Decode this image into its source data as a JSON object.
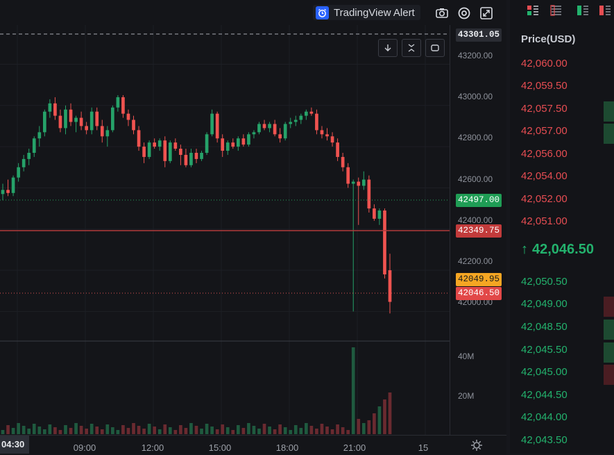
{
  "toolbar": {
    "alert_label": "TradingView Alert",
    "icons": [
      "alarm-clock-icon",
      "camera-icon",
      "settings-icon",
      "fullscreen-icon",
      "arrow-down-icon",
      "collapse-icon",
      "restore-icon"
    ]
  },
  "price_axis": {
    "ticks": [
      "43200.00",
      "43000.00",
      "42800.00",
      "42600.00",
      "42400.00",
      "42200.00",
      "42000.00"
    ],
    "crosshair_label": "43301.05",
    "tags": {
      "green_level": "42497.00",
      "red_level": "42349.75",
      "yellow_level": "42049.95",
      "last_price": "42046.50"
    }
  },
  "volume_axis": {
    "ticks": [
      "40M",
      "20M"
    ]
  },
  "time_axis": {
    "labels": [
      "09:00",
      "12:00",
      "15:00",
      "18:00",
      "21:00",
      "15"
    ],
    "cursor_label": "04:30"
  },
  "order_book": {
    "header": "Price(USD)",
    "asks": [
      "42,060.00",
      "42,059.50",
      "42,057.50",
      "42,057.00",
      "42,056.00",
      "42,054.00",
      "42,052.00",
      "42,051.00"
    ],
    "last_price": "42,046.50",
    "last_arrow": "↑",
    "bids": [
      "42,050.50",
      "42,049.00",
      "42,048.50",
      "42,045.50",
      "42,045.00",
      "42,044.50",
      "42,044.00",
      "42,043.50"
    ]
  },
  "colors": {
    "up": "#26a269",
    "down": "#ef5350",
    "ask_text": "#e64d52",
    "bid_text": "#23b26d",
    "alert_blue": "#2962ff",
    "yellow_tag": "#f5a623"
  },
  "chart_data": {
    "type": "candlestick",
    "interval_hint": "15m",
    "ylim": [
      41900,
      43350
    ],
    "candles": [
      {
        "o": 42570,
        "h": 42620,
        "l": 42540,
        "c": 42590
      },
      {
        "o": 42590,
        "h": 42640,
        "l": 42560,
        "c": 42575
      },
      {
        "o": 42575,
        "h": 42660,
        "l": 42560,
        "c": 42650
      },
      {
        "o": 42650,
        "h": 42720,
        "l": 42630,
        "c": 42700
      },
      {
        "o": 42700,
        "h": 42760,
        "l": 42680,
        "c": 42740
      },
      {
        "o": 42740,
        "h": 42790,
        "l": 42710,
        "c": 42770
      },
      {
        "o": 42770,
        "h": 42850,
        "l": 42750,
        "c": 42840
      },
      {
        "o": 42840,
        "h": 42900,
        "l": 42800,
        "c": 42870
      },
      {
        "o": 42870,
        "h": 42980,
        "l": 42850,
        "c": 42970
      },
      {
        "o": 42970,
        "h": 43030,
        "l": 42940,
        "c": 43010
      },
      {
        "o": 43010,
        "h": 43040,
        "l": 42930,
        "c": 42950
      },
      {
        "o": 42950,
        "h": 42980,
        "l": 42870,
        "c": 42890
      },
      {
        "o": 42890,
        "h": 43000,
        "l": 42860,
        "c": 42980
      },
      {
        "o": 42980,
        "h": 43010,
        "l": 42900,
        "c": 42920
      },
      {
        "o": 42920,
        "h": 42950,
        "l": 42870,
        "c": 42940
      },
      {
        "o": 42940,
        "h": 42970,
        "l": 42880,
        "c": 42900
      },
      {
        "o": 42900,
        "h": 42920,
        "l": 42860,
        "c": 42880
      },
      {
        "o": 42880,
        "h": 42990,
        "l": 42860,
        "c": 42970
      },
      {
        "o": 42970,
        "h": 42990,
        "l": 42880,
        "c": 42900
      },
      {
        "o": 42900,
        "h": 42930,
        "l": 42820,
        "c": 42850
      },
      {
        "o": 42850,
        "h": 42900,
        "l": 42800,
        "c": 42880
      },
      {
        "o": 42880,
        "h": 43000,
        "l": 42870,
        "c": 42990
      },
      {
        "o": 42990,
        "h": 43050,
        "l": 42970,
        "c": 43040
      },
      {
        "o": 43040,
        "h": 43050,
        "l": 42940,
        "c": 42960
      },
      {
        "o": 42960,
        "h": 42980,
        "l": 42900,
        "c": 42930
      },
      {
        "o": 42930,
        "h": 42950,
        "l": 42860,
        "c": 42880
      },
      {
        "o": 42880,
        "h": 42900,
        "l": 42780,
        "c": 42800
      },
      {
        "o": 42800,
        "h": 42820,
        "l": 42720,
        "c": 42750
      },
      {
        "o": 42750,
        "h": 42830,
        "l": 42740,
        "c": 42820
      },
      {
        "o": 42820,
        "h": 42840,
        "l": 42790,
        "c": 42800
      },
      {
        "o": 42800,
        "h": 42840,
        "l": 42780,
        "c": 42830
      },
      {
        "o": 42830,
        "h": 42850,
        "l": 42700,
        "c": 42730
      },
      {
        "o": 42730,
        "h": 42830,
        "l": 42720,
        "c": 42820
      },
      {
        "o": 42820,
        "h": 42840,
        "l": 42780,
        "c": 42790
      },
      {
        "o": 42790,
        "h": 42810,
        "l": 42710,
        "c": 42760
      },
      {
        "o": 42760,
        "h": 42790,
        "l": 42700,
        "c": 42710
      },
      {
        "o": 42710,
        "h": 42790,
        "l": 42700,
        "c": 42770
      },
      {
        "o": 42770,
        "h": 42790,
        "l": 42720,
        "c": 42740
      },
      {
        "o": 42740,
        "h": 42780,
        "l": 42730,
        "c": 42770
      },
      {
        "o": 42770,
        "h": 42870,
        "l": 42760,
        "c": 42860
      },
      {
        "o": 42860,
        "h": 42980,
        "l": 42850,
        "c": 42960
      },
      {
        "o": 42960,
        "h": 42970,
        "l": 42820,
        "c": 42840
      },
      {
        "o": 42840,
        "h": 42860,
        "l": 42750,
        "c": 42780
      },
      {
        "o": 42780,
        "h": 42830,
        "l": 42760,
        "c": 42820
      },
      {
        "o": 42820,
        "h": 42840,
        "l": 42790,
        "c": 42800
      },
      {
        "o": 42800,
        "h": 42850,
        "l": 42780,
        "c": 42840
      },
      {
        "o": 42840,
        "h": 42860,
        "l": 42800,
        "c": 42810
      },
      {
        "o": 42810,
        "h": 42870,
        "l": 42800,
        "c": 42860
      },
      {
        "o": 42860,
        "h": 42880,
        "l": 42840,
        "c": 42870
      },
      {
        "o": 42870,
        "h": 42920,
        "l": 42860,
        "c": 42910
      },
      {
        "o": 42910,
        "h": 42930,
        "l": 42880,
        "c": 42890
      },
      {
        "o": 42890,
        "h": 42920,
        "l": 42870,
        "c": 42910
      },
      {
        "o": 42910,
        "h": 42930,
        "l": 42850,
        "c": 42860
      },
      {
        "o": 42860,
        "h": 42890,
        "l": 42820,
        "c": 42840
      },
      {
        "o": 42840,
        "h": 42920,
        "l": 42830,
        "c": 42910
      },
      {
        "o": 42910,
        "h": 42940,
        "l": 42890,
        "c": 42920
      },
      {
        "o": 42920,
        "h": 42950,
        "l": 42900,
        "c": 42930
      },
      {
        "o": 42930,
        "h": 42960,
        "l": 42910,
        "c": 42950
      },
      {
        "o": 42950,
        "h": 42980,
        "l": 42930,
        "c": 42970
      },
      {
        "o": 42970,
        "h": 42990,
        "l": 42950,
        "c": 42960
      },
      {
        "o": 42960,
        "h": 42980,
        "l": 42860,
        "c": 42880
      },
      {
        "o": 42880,
        "h": 42900,
        "l": 42840,
        "c": 42860
      },
      {
        "o": 42860,
        "h": 42890,
        "l": 42830,
        "c": 42850
      },
      {
        "o": 42850,
        "h": 42870,
        "l": 42800,
        "c": 42820
      },
      {
        "o": 42820,
        "h": 42840,
        "l": 42730,
        "c": 42750
      },
      {
        "o": 42750,
        "h": 42770,
        "l": 42680,
        "c": 42700
      },
      {
        "o": 42700,
        "h": 42720,
        "l": 42600,
        "c": 42620
      },
      {
        "o": 42620,
        "h": 42640,
        "l": 42000,
        "c": 42630
      },
      {
        "o": 42630,
        "h": 42650,
        "l": 42420,
        "c": 42610
      },
      {
        "o": 42610,
        "h": 42680,
        "l": 42590,
        "c": 42640
      },
      {
        "o": 42640,
        "h": 42660,
        "l": 42480,
        "c": 42500
      },
      {
        "o": 42500,
        "h": 42520,
        "l": 42440,
        "c": 42450
      },
      {
        "o": 42450,
        "h": 42500,
        "l": 42420,
        "c": 42490
      },
      {
        "o": 42490,
        "h": 42500,
        "l": 42160,
        "c": 42180
      },
      {
        "o": 42200,
        "h": 42280,
        "l": 41990,
        "c": 42046.5
      }
    ]
  }
}
